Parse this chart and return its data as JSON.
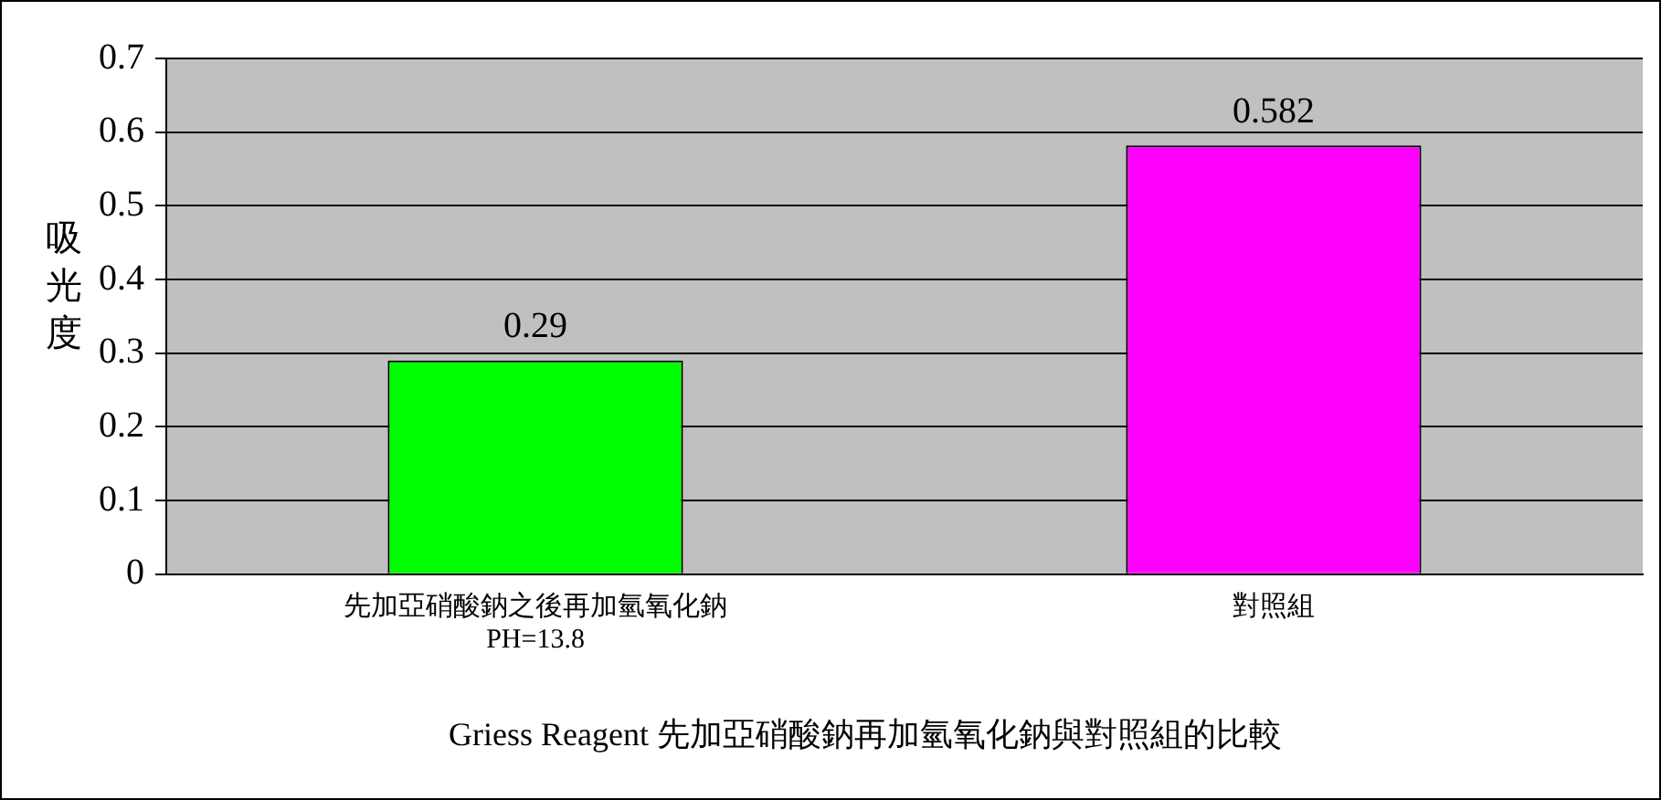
{
  "chart_data": {
    "type": "bar",
    "title": "Griess Reagent 先加亞硝酸鈉再加氫氧化鈉與對照組的比較",
    "ylabel": "吸光度",
    "categories": [
      "先加亞硝酸鈉之後再加氫氧化鈉\nPH=13.8",
      "對照組"
    ],
    "values": [
      0.29,
      0.582
    ],
    "colors": [
      "#00ff00",
      "#ff00ff"
    ],
    "ylim": [
      0,
      0.7
    ],
    "yticks": [
      0,
      0.1,
      0.2,
      0.3,
      0.4,
      0.5,
      0.6,
      0.7
    ],
    "grid": "y",
    "legend": false,
    "data_labels": true
  }
}
